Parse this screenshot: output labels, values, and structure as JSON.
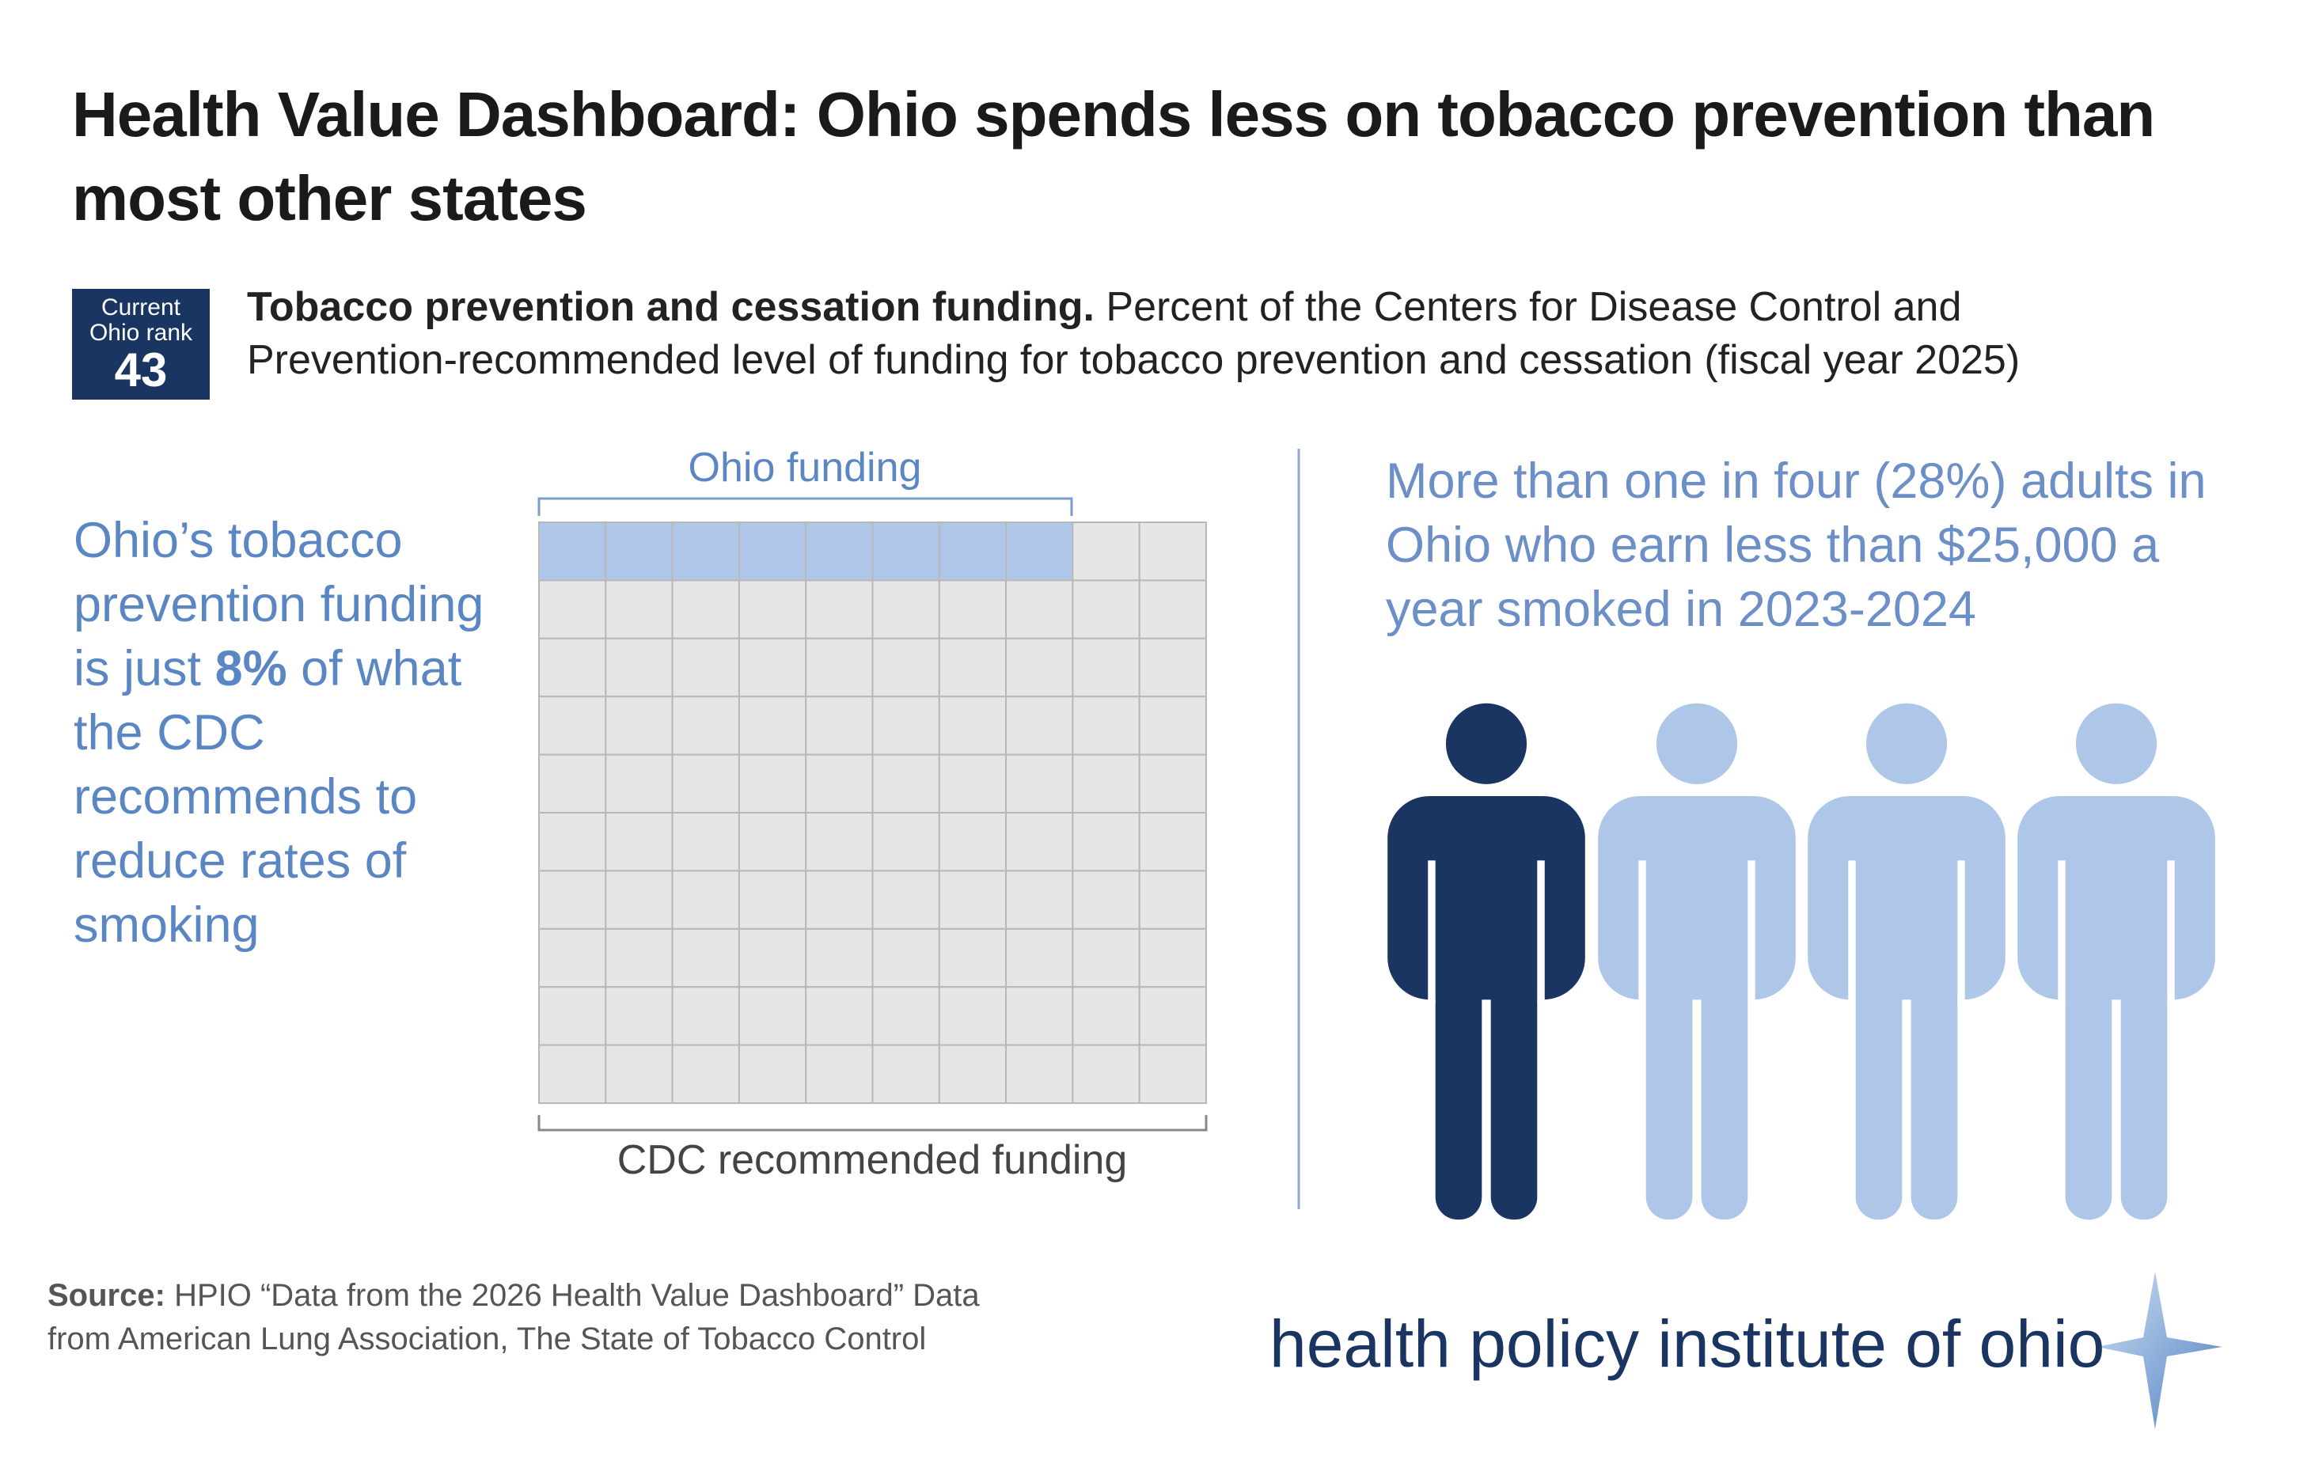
{
  "title": "Health Value Dashboard: Ohio spends less on tobacco prevention than most other states",
  "rank": {
    "label_line1": "Current",
    "label_line2": "Ohio rank",
    "value": "43"
  },
  "subtitle": {
    "bold": "Tobacco prevention and cessation funding.",
    "text": "Percent of the Centers for Disease Control and Prevention-recommended level of funding for tobacco prevention and cessation (fiscal year 2025)"
  },
  "left_text": {
    "before": "Ohio’s tobacco prevention funding is just",
    "highlight": "8%",
    "after": "of what the CDC recommends to reduce rates of smoking"
  },
  "waffle": {
    "value": 8,
    "top_label": "Ohio funding",
    "bottom_label": "CDC recommended funding"
  },
  "right_text": "More than one in four (28%) adults in Ohio who earn less than $25,000 a year smoked in 2023-2024",
  "source": {
    "bold": "Source:",
    "line1": "HPIO “Data from the 2026 Health Value Dashboard” Data",
    "line2": "from American Lung Association, The State of Tobacco Control"
  },
  "logo": "health policy institute of ohio"
}
